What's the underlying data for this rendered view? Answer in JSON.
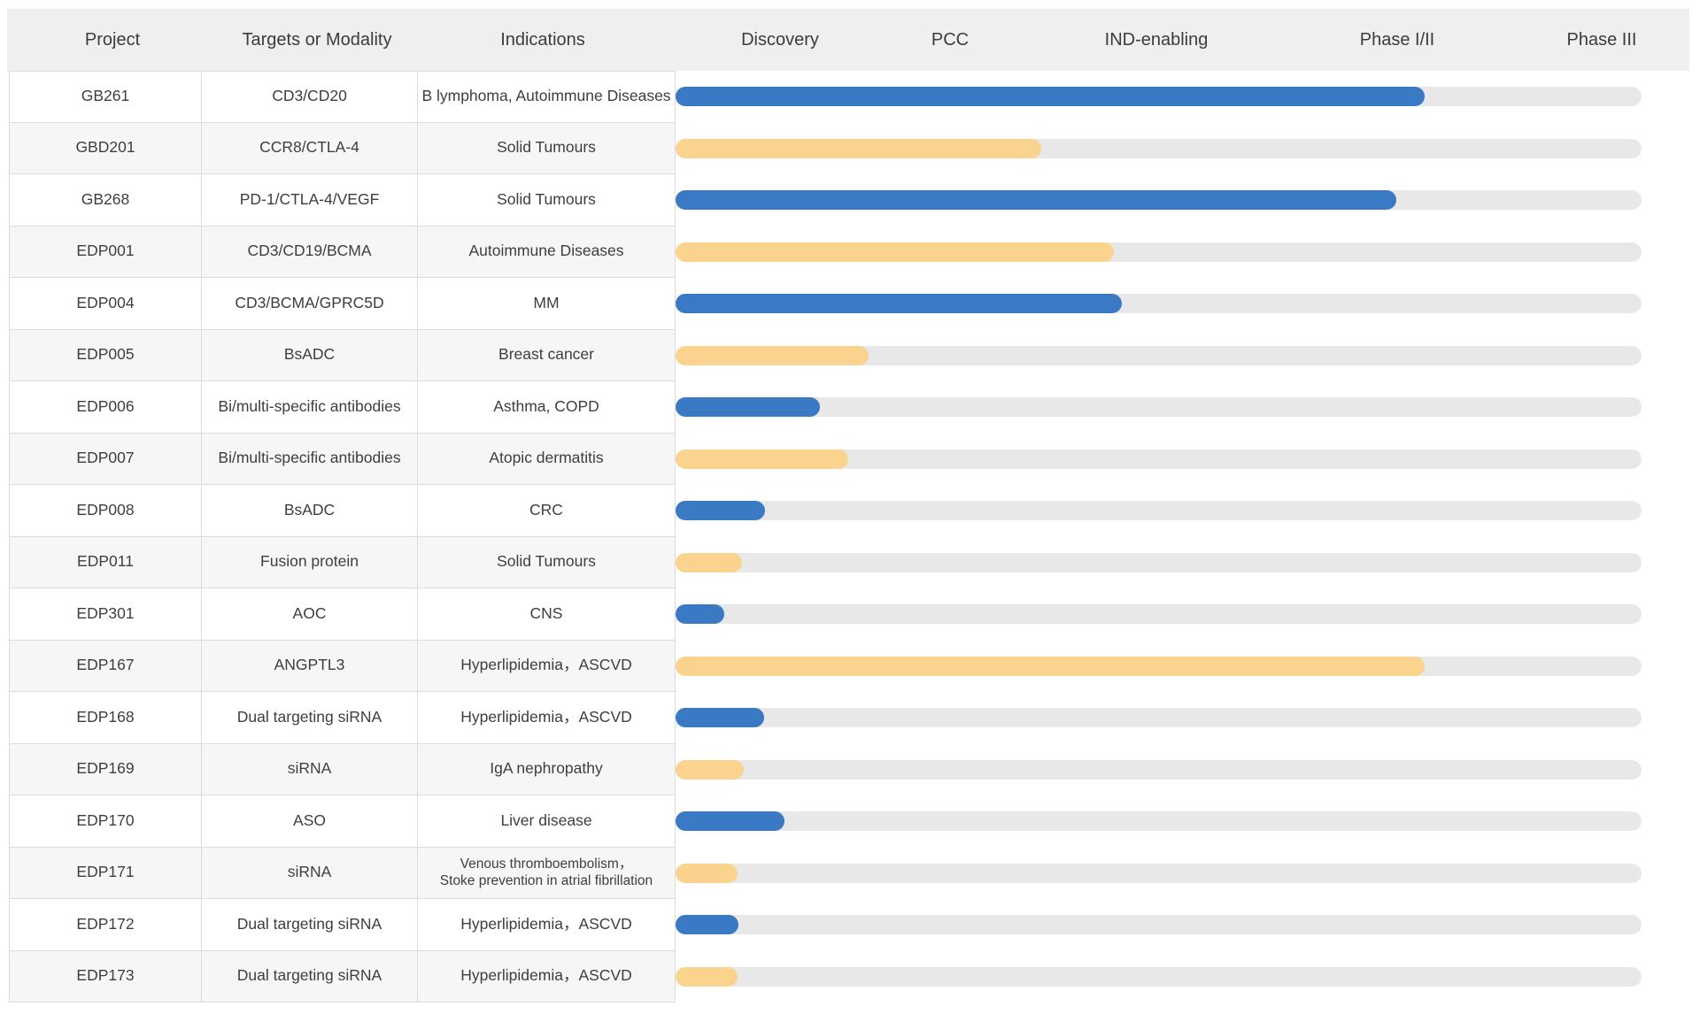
{
  "table": {
    "columns": [
      "Project",
      "Targets or Modality",
      "Indications",
      "Discovery",
      "PCC",
      "IND-enabling",
      "Phase I/II",
      "Phase III"
    ]
  },
  "colors": {
    "blue": "#3a79c4",
    "yellow": "#fad48f",
    "track": "#e8e8e8",
    "header_bg": "#f0efef",
    "alt_row_bg": "#f6f6f6",
    "border": "#dcdcdc",
    "text": "#3e3e3e"
  },
  "chart_data": {
    "type": "bar",
    "orientation": "horizontal",
    "title": "",
    "phase_columns": [
      "Discovery",
      "PCC",
      "IND-enabling",
      "Phase I/II",
      "Phase III"
    ],
    "progress_unit": "percent of full pipeline track (Discovery start to Phase III end)",
    "rows": [
      {
        "project": "GB261",
        "targets_or_modality": "CD3/CD20",
        "indications": "B lymphoma, Autoimmune Diseases",
        "bar_color": "blue",
        "progress_pct": 77.5
      },
      {
        "project": "GBD201",
        "targets_or_modality": "CCR8/CTLA-4",
        "indications": "Solid Tumours",
        "bar_color": "yellow",
        "progress_pct": 37.9
      },
      {
        "project": "GB268",
        "targets_or_modality": "PD-1/CTLA-4/VEGF",
        "indications": "Solid Tumours",
        "bar_color": "blue",
        "progress_pct": 74.6
      },
      {
        "project": "EDP001",
        "targets_or_modality": "CD3/CD19/BCMA",
        "indications": "Autoimmune Diseases",
        "bar_color": "yellow",
        "progress_pct": 45.4
      },
      {
        "project": "EDP004",
        "targets_or_modality": "CD3/BCMA/GPRC5D",
        "indications": "MM",
        "bar_color": "blue",
        "progress_pct": 46.2
      },
      {
        "project": "EDP005",
        "targets_or_modality": "BsADC",
        "indications": "Breast cancer",
        "bar_color": "yellow",
        "progress_pct": 20.0
      },
      {
        "project": "EDP006",
        "targets_or_modality": "Bi/multi-specific antibodies",
        "indications": "Asthma, COPD",
        "bar_color": "blue",
        "progress_pct": 14.9
      },
      {
        "project": "EDP007",
        "targets_or_modality": "Bi/multi-specific antibodies",
        "indications": "Atopic dermatitis",
        "bar_color": "yellow",
        "progress_pct": 17.9
      },
      {
        "project": "EDP008",
        "targets_or_modality": "BsADC",
        "indications": "CRC",
        "bar_color": "blue",
        "progress_pct": 9.3
      },
      {
        "project": "EDP011",
        "targets_or_modality": "Fusion protein",
        "indications": "Solid Tumours",
        "bar_color": "yellow",
        "progress_pct": 6.9
      },
      {
        "project": "EDP301",
        "targets_or_modality": "AOC",
        "indications": "CNS",
        "bar_color": "blue",
        "progress_pct": 5.0
      },
      {
        "project": "EDP167",
        "targets_or_modality": "ANGPTL3",
        "indications": "Hyperlipidemia，ASCVD",
        "bar_color": "yellow",
        "progress_pct": 77.5
      },
      {
        "project": "EDP168",
        "targets_or_modality": "Dual targeting siRNA",
        "indications": "Hyperlipidemia，ASCVD",
        "bar_color": "blue",
        "progress_pct": 9.2
      },
      {
        "project": "EDP169",
        "targets_or_modality": "siRNA",
        "indications": "IgA nephropathy",
        "bar_color": "yellow",
        "progress_pct": 7.1
      },
      {
        "project": "EDP170",
        "targets_or_modality": "ASO",
        "indications": "Liver disease",
        "bar_color": "blue",
        "progress_pct": 11.3
      },
      {
        "project": "EDP171",
        "targets_or_modality": "siRNA",
        "indications": "Venous thromboembolism，\nStoke prevention in atrial fibrillation",
        "bar_color": "yellow",
        "progress_pct": 6.4,
        "indications_small": true
      },
      {
        "project": "EDP172",
        "targets_or_modality": "Dual targeting siRNA",
        "indications": "Hyperlipidemia，ASCVD",
        "bar_color": "blue",
        "progress_pct": 6.5
      },
      {
        "project": "EDP173",
        "targets_or_modality": "Dual targeting siRNA",
        "indications": "Hyperlipidemia，ASCVD",
        "bar_color": "yellow",
        "progress_pct": 6.4
      }
    ]
  }
}
